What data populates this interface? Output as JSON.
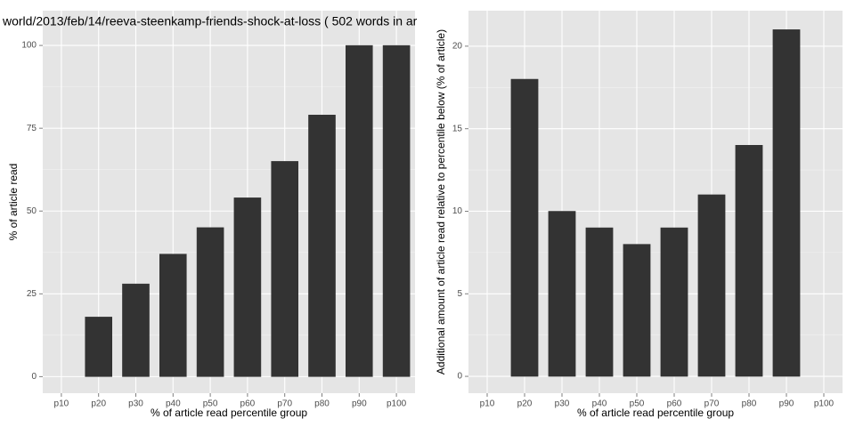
{
  "chart_data": [
    {
      "type": "bar",
      "title": "world/2013/feb/14/reeva-steenkamp-friends-shock-at-loss ( 502 words in ar",
      "x_label": "% of article read percentile group",
      "y_label": "% of article read",
      "categories": [
        "p10",
        "p20",
        "p30",
        "p40",
        "p50",
        "p60",
        "p70",
        "p80",
        "p90",
        "p100"
      ],
      "values": [
        0,
        18,
        28,
        37,
        45,
        54,
        65,
        79,
        100,
        100
      ],
      "color": "#333333",
      "ylim": [
        -5,
        110.5
      ],
      "yticks": [
        0,
        25,
        50,
        75,
        100
      ],
      "grid": true
    },
    {
      "type": "bar",
      "x_label": "% of article read percentile group",
      "y_label": "Additional amount of article read relative to percentile below (% of article)",
      "categories": [
        "p10",
        "p20",
        "p30",
        "p40",
        "p50",
        "p60",
        "p70",
        "p80",
        "p90",
        "p100"
      ],
      "values": [
        0,
        18,
        10,
        9,
        8,
        9,
        11,
        14,
        21,
        0
      ],
      "color": "#333333",
      "ylim": [
        -1.02,
        22.15
      ],
      "yticks": [
        0,
        5,
        10,
        15,
        20
      ],
      "grid": true
    }
  ]
}
